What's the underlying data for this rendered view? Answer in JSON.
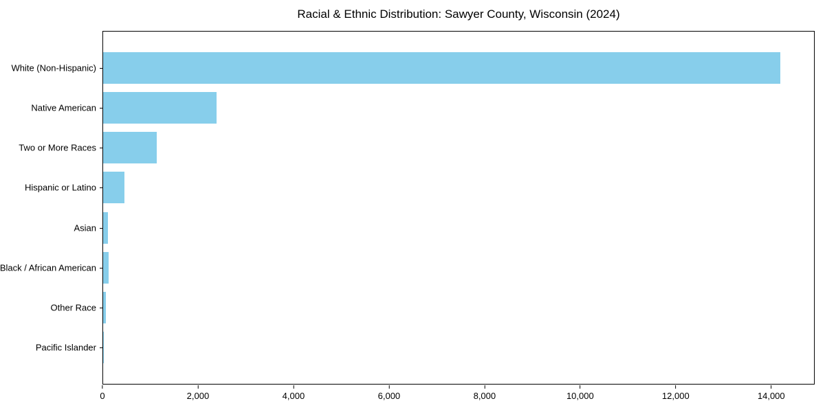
{
  "title": "Racial & Ethnic Distribution: Sawyer County, Wisconsin (2024)",
  "colors": {
    "bar": "#87CEEB",
    "axis": "#000000",
    "background": "#FFFFFF"
  },
  "chart_data": {
    "type": "bar",
    "orientation": "horizontal",
    "title": "Racial & Ethnic Distribution: Sawyer County, Wisconsin (2024)",
    "categories": [
      "White (Non-Hispanic)",
      "Native American",
      "Two or More Races",
      "Hispanic or Latino",
      "Asian",
      "Black / African American",
      "Other Race",
      "Pacific Islander"
    ],
    "values": [
      14200,
      2380,
      1130,
      445,
      105,
      120,
      55,
      5
    ],
    "xlabel": "",
    "ylabel": "",
    "xlim": [
      0,
      14910
    ],
    "x_ticks": [
      0,
      2000,
      4000,
      6000,
      8000,
      10000,
      12000,
      14000
    ],
    "x_tick_labels": [
      "0",
      "2,000",
      "4,000",
      "6,000",
      "8,000",
      "10,000",
      "12,000",
      "14,000"
    ],
    "grid": false,
    "legend": false,
    "bar_color": "#87CEEB"
  }
}
